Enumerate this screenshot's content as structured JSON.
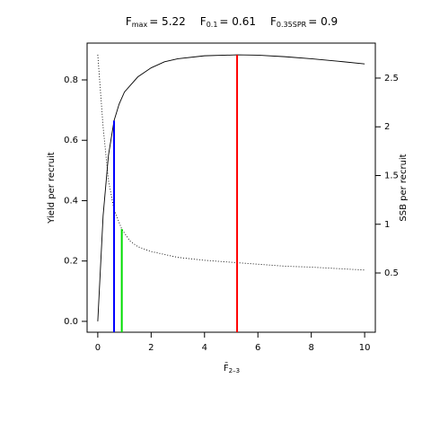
{
  "chart_data": {
    "type": "line",
    "title_items": [
      {
        "symbol": "F",
        "subscript": "max",
        "label": "= 5.22"
      },
      {
        "symbol": "F",
        "subscript": "0.1",
        "label": "= 0.61"
      },
      {
        "symbol": "F",
        "subscript": "0.35SPR",
        "label": "= 0.9"
      }
    ],
    "x_label": "F̄",
    "x_label_sub": "2–3",
    "y_label": "Yield per recruit",
    "y2_label": "SSB per recruit",
    "xlim": [
      -0.4,
      10.4
    ],
    "ylim": [
      -0.036,
      0.922
    ],
    "y2lim": [
      -0.108,
      2.859
    ],
    "xticks": [
      0,
      2,
      4,
      6,
      8,
      10
    ],
    "yticks": [
      {
        "value": 0,
        "label": "0.0"
      },
      0.2,
      0.4,
      0.6,
      0.8
    ],
    "y2ticks": [
      0.5,
      1,
      1.5,
      2,
      2.5
    ],
    "series": [
      {
        "style": "solid",
        "color": "#000000",
        "x": [
          0,
          0.2,
          0.4,
          0.61,
          0.8,
          1,
          1.5,
          2,
          2.5,
          3,
          4,
          5.22,
          6,
          7,
          8,
          9,
          10
        ],
        "values": [
          0,
          0.35,
          0.55,
          0.665,
          0.72,
          0.76,
          0.81,
          0.84,
          0.86,
          0.87,
          0.88,
          0.883,
          0.882,
          0.877,
          0.87,
          0.862,
          0.853
        ]
      },
      {
        "style": "dotted",
        "color": "#000000",
        "axis": "y2",
        "x": [
          0,
          0.2,
          0.4,
          0.61,
          0.9,
          1.2,
          1.5,
          2,
          3,
          4,
          5,
          6,
          7,
          8,
          9,
          10
        ],
        "values": [
          2.74,
          2.0,
          1.45,
          1.15,
          0.95,
          0.83,
          0.77,
          0.72,
          0.66,
          0.63,
          0.61,
          0.59,
          0.57,
          0.56,
          0.545,
          0.53
        ]
      }
    ],
    "reference_lines": [
      {
        "x": 5.22,
        "top": 0.883,
        "color": "#ff0000"
      },
      {
        "x": 0.61,
        "top": 0.665,
        "color": "#0000ff"
      },
      {
        "x": 0.9,
        "top": 0.95,
        "axis": "y2",
        "color": "#00dd00"
      }
    ]
  }
}
